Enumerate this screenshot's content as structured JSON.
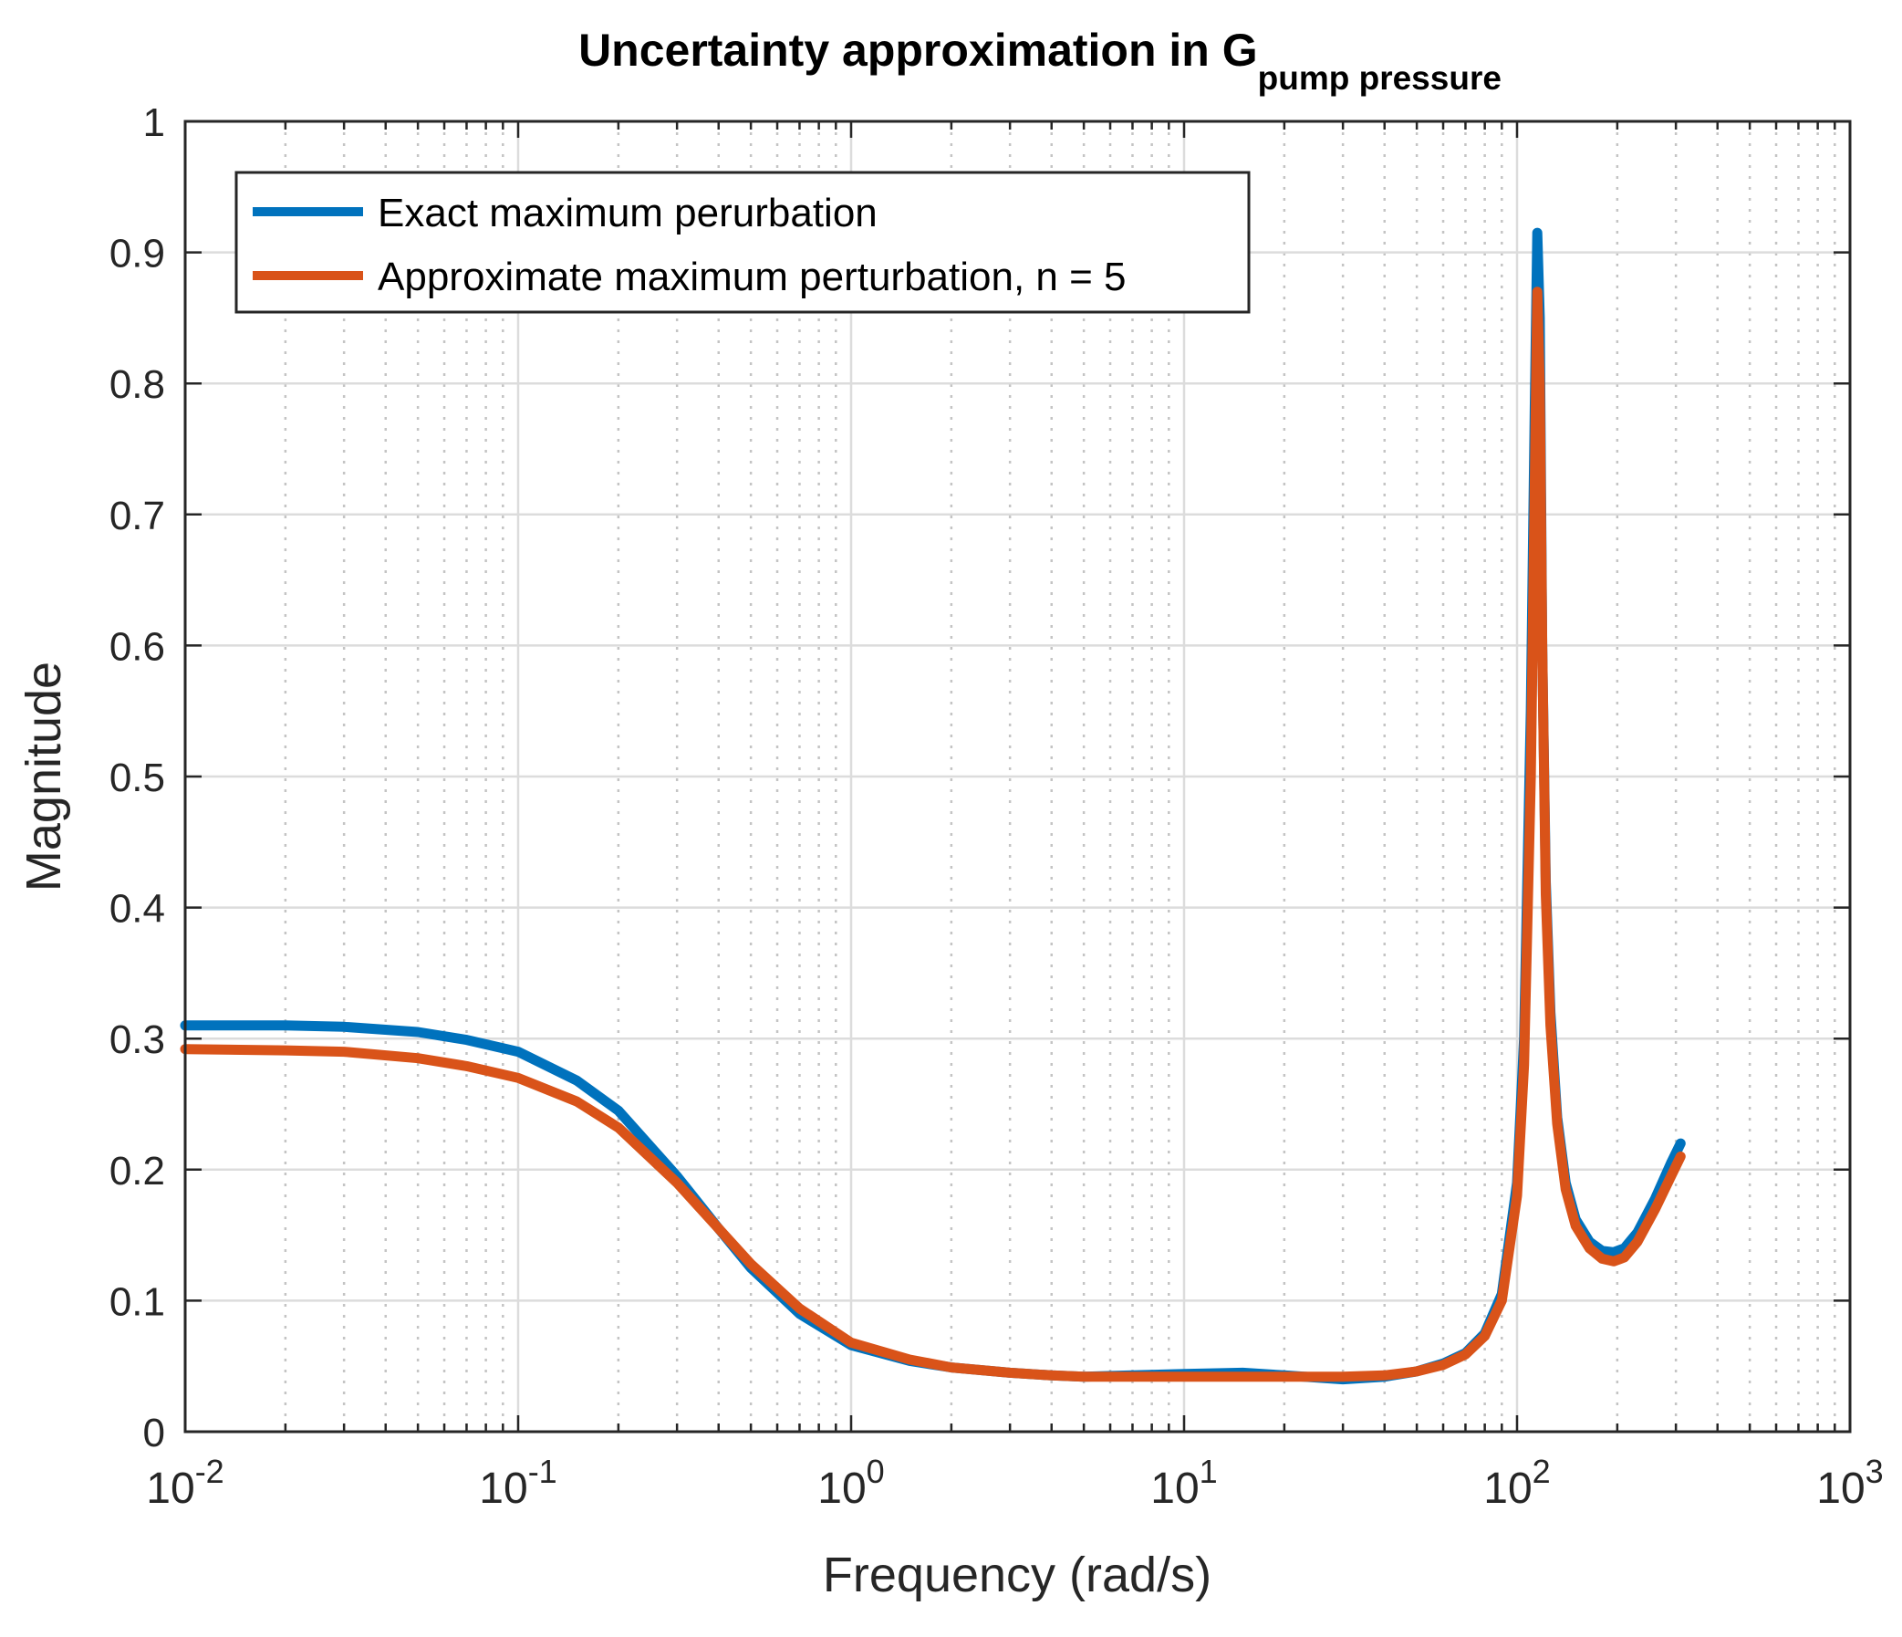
{
  "chart_data": {
    "type": "line",
    "title": "Uncertainty approximation in G",
    "title_subscript": "pump pressure",
    "xlabel": "Frequency (rad/s)",
    "ylabel": "Magnitude",
    "xscale": "log",
    "xlim": [
      0.01,
      1000
    ],
    "ylim": [
      0,
      1
    ],
    "grid": true,
    "legend_location": "top-left",
    "x_ticks": [
      {
        "base": "10",
        "exp": "-2",
        "value": 0.01
      },
      {
        "base": "10",
        "exp": "-1",
        "value": 0.1
      },
      {
        "base": "10",
        "exp": "0",
        "value": 1
      },
      {
        "base": "10",
        "exp": "1",
        "value": 10
      },
      {
        "base": "10",
        "exp": "2",
        "value": 100
      },
      {
        "base": "10",
        "exp": "3",
        "value": 1000
      }
    ],
    "y_ticks": [
      "0",
      "0.1",
      "0.2",
      "0.3",
      "0.4",
      "0.5",
      "0.6",
      "0.7",
      "0.8",
      "0.9",
      "1"
    ],
    "series": [
      {
        "name": "Exact maximum perurbation",
        "color": "#0072BD",
        "points": [
          [
            0.01,
            0.31
          ],
          [
            0.02,
            0.31
          ],
          [
            0.03,
            0.309
          ],
          [
            0.05,
            0.305
          ],
          [
            0.07,
            0.299
          ],
          [
            0.1,
            0.29
          ],
          [
            0.15,
            0.268
          ],
          [
            0.2,
            0.245
          ],
          [
            0.3,
            0.195
          ],
          [
            0.4,
            0.155
          ],
          [
            0.5,
            0.125
          ],
          [
            0.7,
            0.09
          ],
          [
            1.0,
            0.066
          ],
          [
            1.5,
            0.054
          ],
          [
            2,
            0.049
          ],
          [
            3,
            0.045
          ],
          [
            4,
            0.043
          ],
          [
            5,
            0.042
          ],
          [
            7,
            0.043
          ],
          [
            10,
            0.044
          ],
          [
            15,
            0.045
          ],
          [
            20,
            0.043
          ],
          [
            30,
            0.04
          ],
          [
            40,
            0.042
          ],
          [
            50,
            0.046
          ],
          [
            60,
            0.052
          ],
          [
            70,
            0.06
          ],
          [
            80,
            0.075
          ],
          [
            90,
            0.105
          ],
          [
            100,
            0.19
          ],
          [
            105,
            0.3
          ],
          [
            110,
            0.55
          ],
          [
            113,
            0.78
          ],
          [
            115,
            0.915
          ],
          [
            117,
            0.85
          ],
          [
            119,
            0.6
          ],
          [
            122,
            0.42
          ],
          [
            126,
            0.32
          ],
          [
            132,
            0.24
          ],
          [
            140,
            0.19
          ],
          [
            150,
            0.162
          ],
          [
            165,
            0.145
          ],
          [
            180,
            0.138
          ],
          [
            195,
            0.137
          ],
          [
            210,
            0.14
          ],
          [
            230,
            0.152
          ],
          [
            260,
            0.178
          ],
          [
            290,
            0.205
          ],
          [
            310,
            0.22
          ]
        ]
      },
      {
        "name": "Approximate maximum perturbation, n = 5",
        "color": "#D95319",
        "points": [
          [
            0.01,
            0.292
          ],
          [
            0.02,
            0.291
          ],
          [
            0.03,
            0.29
          ],
          [
            0.05,
            0.285
          ],
          [
            0.07,
            0.279
          ],
          [
            0.1,
            0.27
          ],
          [
            0.15,
            0.252
          ],
          [
            0.2,
            0.232
          ],
          [
            0.3,
            0.19
          ],
          [
            0.4,
            0.155
          ],
          [
            0.5,
            0.128
          ],
          [
            0.7,
            0.094
          ],
          [
            1.0,
            0.068
          ],
          [
            1.5,
            0.055
          ],
          [
            2,
            0.049
          ],
          [
            3,
            0.045
          ],
          [
            4,
            0.043
          ],
          [
            5,
            0.042
          ],
          [
            7,
            0.042
          ],
          [
            10,
            0.042
          ],
          [
            15,
            0.042
          ],
          [
            20,
            0.042
          ],
          [
            30,
            0.042
          ],
          [
            40,
            0.043
          ],
          [
            50,
            0.046
          ],
          [
            60,
            0.051
          ],
          [
            70,
            0.059
          ],
          [
            80,
            0.073
          ],
          [
            90,
            0.1
          ],
          [
            100,
            0.18
          ],
          [
            105,
            0.28
          ],
          [
            110,
            0.5
          ],
          [
            113,
            0.72
          ],
          [
            115,
            0.87
          ],
          [
            117,
            0.8
          ],
          [
            119,
            0.6
          ],
          [
            122,
            0.41
          ],
          [
            126,
            0.31
          ],
          [
            132,
            0.235
          ],
          [
            140,
            0.185
          ],
          [
            150,
            0.157
          ],
          [
            165,
            0.14
          ],
          [
            180,
            0.132
          ],
          [
            195,
            0.13
          ],
          [
            210,
            0.133
          ],
          [
            230,
            0.145
          ],
          [
            260,
            0.17
          ],
          [
            290,
            0.195
          ],
          [
            310,
            0.21
          ]
        ]
      }
    ]
  }
}
